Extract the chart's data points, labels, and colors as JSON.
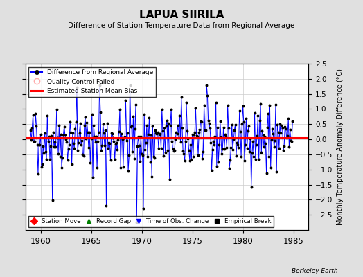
{
  "title": "LAPUA SIIRILA",
  "subtitle": "Difference of Station Temperature Data from Regional Average",
  "ylabel": "Monthly Temperature Anomaly Difference (°C)",
  "xlim": [
    1958.5,
    1986.5
  ],
  "ylim": [
    -3,
    2.5
  ],
  "yticks": [
    -2.5,
    -2,
    -1.5,
    -1,
    -0.5,
    0,
    0.5,
    1,
    1.5,
    2,
    2.5
  ],
  "xticks": [
    1960,
    1965,
    1970,
    1975,
    1980,
    1985
  ],
  "mean_bias": 0.05,
  "background_color": "#e0e0e0",
  "plot_bg_color": "#ffffff",
  "line_color": "#0000ff",
  "fill_color": "#aaaaff",
  "bias_color": "#ff0000",
  "seed": 42,
  "n_points": 312,
  "x_start": 1959.0,
  "legend1_items": [
    "Difference from Regional Average",
    "Quality Control Failed",
    "Estimated Station Mean Bias"
  ],
  "legend2_items": [
    "Station Move",
    "Record Gap",
    "Time of Obs. Change",
    "Empirical Break"
  ]
}
